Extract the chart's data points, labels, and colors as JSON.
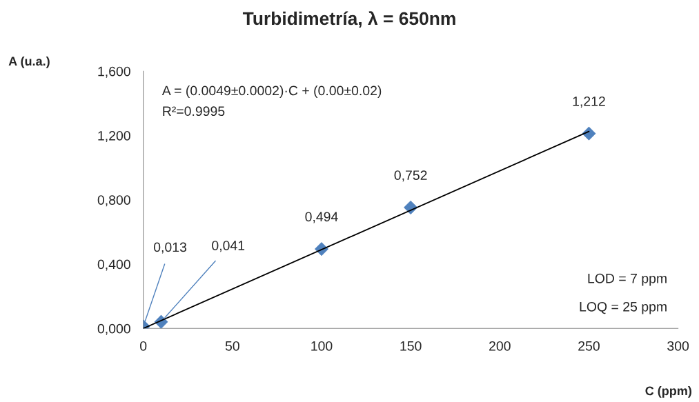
{
  "chart_data": {
    "type": "scatter",
    "title": "Turbidimetría, λ = 650nm",
    "xlabel": "C (ppm)",
    "ylabel": "A (u.a.)",
    "xlim": [
      0,
      300
    ],
    "xticks": [
      0,
      50,
      100,
      150,
      200,
      250,
      300
    ],
    "ylim": [
      0,
      1.6
    ],
    "yticks": [
      {
        "value": 0,
        "label": "0,000"
      },
      {
        "value": 0.4,
        "label": "0,400"
      },
      {
        "value": 0.8,
        "label": "0,800"
      },
      {
        "value": 1.2,
        "label": "1,200"
      },
      {
        "value": 1.6,
        "label": "1,600"
      }
    ],
    "grid": false,
    "legend": false,
    "series": [
      {
        "type": "line",
        "color": "#000000",
        "x": [
          0,
          250
        ],
        "values": [
          0,
          1.225
        ],
        "marker": "none",
        "line_style": "solid"
      },
      {
        "color": "#4f81bd",
        "marker": "diamond",
        "x": [
          0,
          10,
          100,
          150,
          250
        ],
        "values": [
          0.013,
          0.041,
          0.494,
          0.752,
          1.212
        ],
        "value_labels": [
          "0,013",
          "0,041",
          "0,494",
          "0,752",
          "1,212"
        ]
      }
    ],
    "annotations": [
      "A = (0.0049±0.0002)·C + (0.00±0.02)",
      "R²=0.9995",
      "LOD = 7 ppm",
      "LOQ = 25 ppm"
    ]
  }
}
